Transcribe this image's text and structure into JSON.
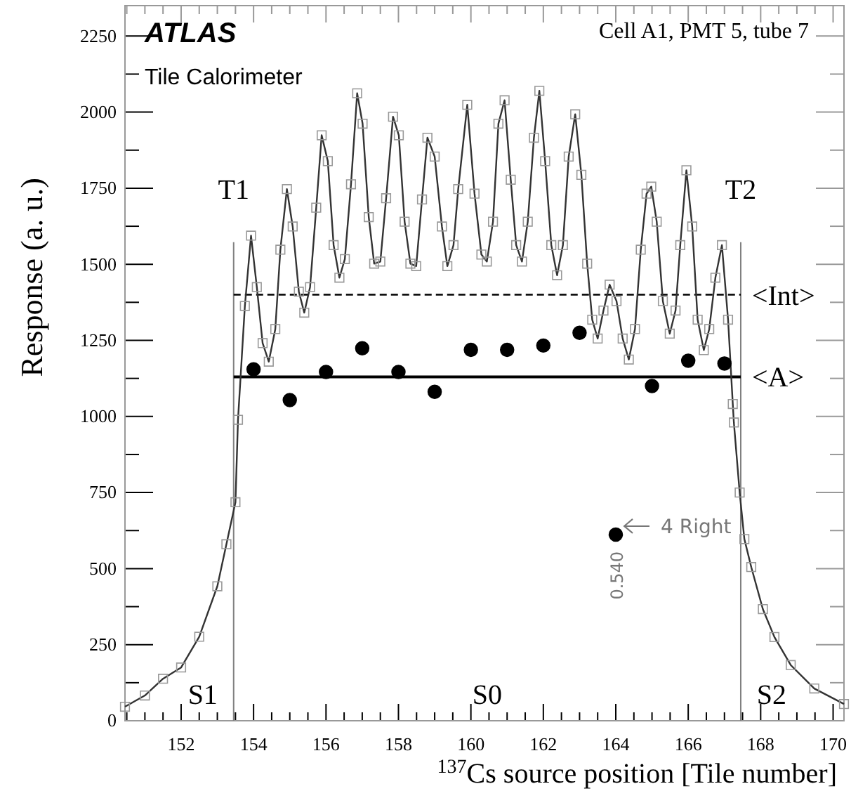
{
  "chart_data": {
    "type": "line",
    "title": "ATLAS",
    "subtitle": "Tile Calorimeter",
    "xlabel": "$^{137}$Cs source position [Tile number]",
    "ylabel": "Response  (a. u.)",
    "xlim": [
      150.45,
      170.3
    ],
    "ylim": [
      0,
      2350
    ],
    "xticks": [
      {
        "value": 150.5,
        "label": null
      },
      {
        "value": 151,
        "label": null
      },
      {
        "value": 151.5,
        "label": null
      },
      152,
      {
        "value": 152.5,
        "label": null
      },
      {
        "value": 153,
        "label": null
      },
      {
        "value": 153.5,
        "label": null
      },
      154,
      {
        "value": 154.5,
        "label": null
      },
      {
        "value": 155,
        "label": null
      },
      {
        "value": 155.5,
        "label": null
      },
      156,
      {
        "value": 156.5,
        "label": null
      },
      {
        "value": 157,
        "label": null
      },
      {
        "value": 157.5,
        "label": null
      },
      158,
      {
        "value": 158.5,
        "label": null
      },
      {
        "value": 159,
        "label": null
      },
      {
        "value": 159.5,
        "label": null
      },
      160,
      {
        "value": 160.5,
        "label": null
      },
      {
        "value": 161,
        "label": null
      },
      {
        "value": 161.5,
        "label": null
      },
      162,
      {
        "value": 162.5,
        "label": null
      },
      {
        "value": 163,
        "label": null
      },
      {
        "value": 163.5,
        "label": null
      },
      164,
      {
        "value": 164.5,
        "label": null
      },
      {
        "value": 165,
        "label": null
      },
      {
        "value": 165.5,
        "label": null
      },
      166,
      {
        "value": 166.5,
        "label": null
      },
      {
        "value": 167,
        "label": null
      },
      {
        "value": 167.5,
        "label": null
      },
      168,
      {
        "value": 168.5,
        "label": null
      },
      {
        "value": 169,
        "label": null
      },
      {
        "value": 169.5,
        "label": null
      },
      170
    ],
    "yticks": [
      0,
      {
        "value": 125,
        "label": null
      },
      250,
      {
        "value": 375,
        "label": null
      },
      500,
      {
        "value": 625,
        "label": null
      },
      750,
      {
        "value": 875,
        "label": null
      },
      1000,
      {
        "value": 1125,
        "label": null
      },
      1250,
      {
        "value": 1375,
        "label": null
      },
      1500,
      {
        "value": 1625,
        "label": null
      },
      1750,
      {
        "value": 1875,
        "label": null
      },
      2000,
      {
        "value": 2125,
        "label": null
      },
      2250
    ],
    "grid": false,
    "line_style": "solid",
    "series": [
      {
        "color": "#333333",
        "marker": "square",
        "x": [
          150.45,
          151,
          151.5,
          152,
          152.5,
          153,
          153.25,
          153.5,
          153.57,
          153.76,
          153.93,
          154.09,
          154.25,
          154.42,
          154.6,
          154.74,
          154.92,
          155.08,
          155.25,
          155.4,
          155.56,
          155.73,
          155.88,
          156.05,
          156.21,
          156.37,
          156.52,
          156.69,
          156.86,
          157.01,
          157.18,
          157.33,
          157.5,
          157.66,
          157.85,
          158.01,
          158.17,
          158.33,
          158.49,
          158.65,
          158.8,
          159.0,
          159.2,
          159.35,
          159.52,
          159.65,
          159.9,
          160.1,
          160.29,
          160.44,
          160.61,
          160.76,
          160.93,
          161.1,
          161.25,
          161.41,
          161.57,
          161.74,
          161.89,
          162.05,
          162.22,
          162.38,
          162.54,
          162.7,
          162.88,
          163.05,
          163.21,
          163.35,
          163.5,
          163.66,
          163.83,
          164.02,
          164.19,
          164.36,
          164.53,
          164.69,
          164.85,
          164.98,
          165.13,
          165.3,
          165.49,
          165.65,
          165.78,
          165.95,
          166.11,
          166.26,
          166.43,
          166.58,
          166.75,
          166.93,
          167.1,
          167.23,
          167.26,
          167.42,
          167.55,
          167.74,
          168.06,
          168.38,
          168.83,
          169.48,
          170.3
        ],
        "values": [
          46,
          83,
          138,
          175,
          276,
          442,
          580,
          718,
          989,
          1363,
          1594,
          1425,
          1241,
          1180,
          1287,
          1548,
          1747,
          1624,
          1410,
          1341,
          1425,
          1686,
          1924,
          1839,
          1563,
          1456,
          1517,
          1763,
          2062,
          1962,
          1655,
          1502,
          1509,
          1717,
          1985,
          1924,
          1640,
          1502,
          1494,
          1713,
          1916,
          1854,
          1624,
          1494,
          1563,
          1747,
          2024,
          1732,
          1532,
          1509,
          1640,
          1962,
          2039,
          1778,
          1563,
          1509,
          1640,
          1916,
          2070,
          1839,
          1563,
          1464,
          1563,
          1854,
          1993,
          1794,
          1502,
          1318,
          1256,
          1348,
          1433,
          1379,
          1256,
          1187,
          1287,
          1548,
          1732,
          1755,
          1640,
          1379,
          1272,
          1348,
          1563,
          1809,
          1624,
          1318,
          1218,
          1287,
          1456,
          1563,
          1318,
          1041,
          980,
          750,
          597,
          505,
          367,
          275,
          183,
          106,
          55
        ]
      },
      {
        "type": "scatter",
        "color": "#000000",
        "marker": "circle",
        "x": [
          154,
          155,
          156,
          157,
          158,
          159,
          160,
          161,
          162,
          163,
          164,
          165,
          166,
          167
        ],
        "values": [
          1155,
          1054,
          1146,
          1224,
          1146,
          1081,
          1219,
          1219,
          1233,
          1275,
          612,
          1100,
          1183,
          1174
        ]
      }
    ],
    "ref_lines": [
      {
        "axis": "x",
        "value": 153.45,
        "label": "T1",
        "color": "#808080"
      },
      {
        "axis": "x",
        "value": 167.45,
        "label": "T2",
        "color": "#808080"
      },
      {
        "axis": "y",
        "value": 1400,
        "label": "<Int>",
        "color": "#000000",
        "line_style": "dashed"
      },
      {
        "axis": "y",
        "value": 1130,
        "label": "<A>",
        "color": "#000000",
        "line_style": "solid"
      }
    ],
    "annotations": [
      "Cell A1, PMT 5, tube 7",
      "S1",
      "S0",
      "S2",
      {
        "text": "4 Right",
        "x": 164,
        "y": 612
      },
      {
        "text": "0.540",
        "x": 164,
        "y": 612
      }
    ]
  }
}
